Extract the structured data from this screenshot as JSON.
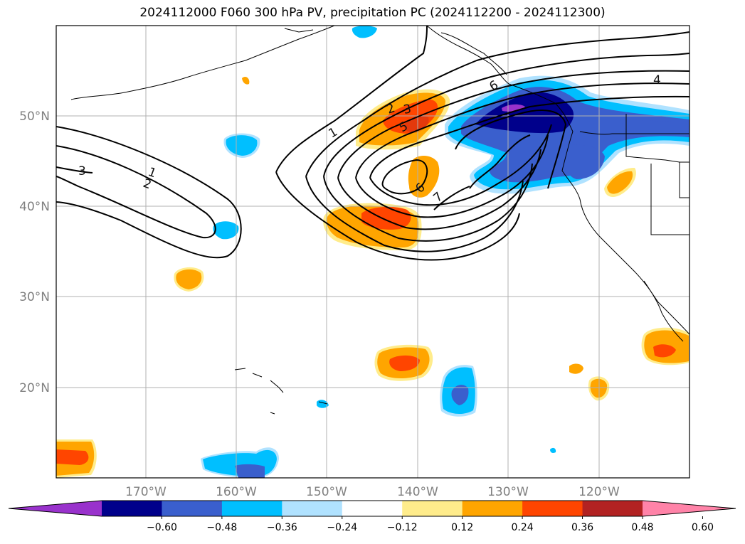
{
  "title": "2024112000 F060 300 hPa PV, precipitation PC (2024112200 - 2024112300)",
  "map": {
    "lat_labels": [
      "50°N",
      "40°N",
      "30°N",
      "20°N"
    ],
    "lon_labels": [
      "170°W",
      "160°W",
      "150°W",
      "140°W",
      "130°W",
      "120°W"
    ],
    "contour_labels": [
      "1",
      "2",
      "2",
      "3",
      "3",
      "5",
      "6",
      "7",
      "6",
      "4"
    ]
  },
  "colorbar": {
    "ticks": [
      "−0.60",
      "−0.48",
      "−0.36",
      "−0.24",
      "−0.12",
      "0.12",
      "0.24",
      "0.36",
      "0.48",
      "0.60"
    ],
    "colors": [
      "#9932CC",
      "#00008B",
      "#3A5FCD",
      "#00BFFF",
      "#B0E2FF",
      "#FFFFFF",
      "#FFEC8B",
      "#FFA500",
      "#FF4500",
      "#B22222",
      "#FF83A8"
    ]
  }
}
